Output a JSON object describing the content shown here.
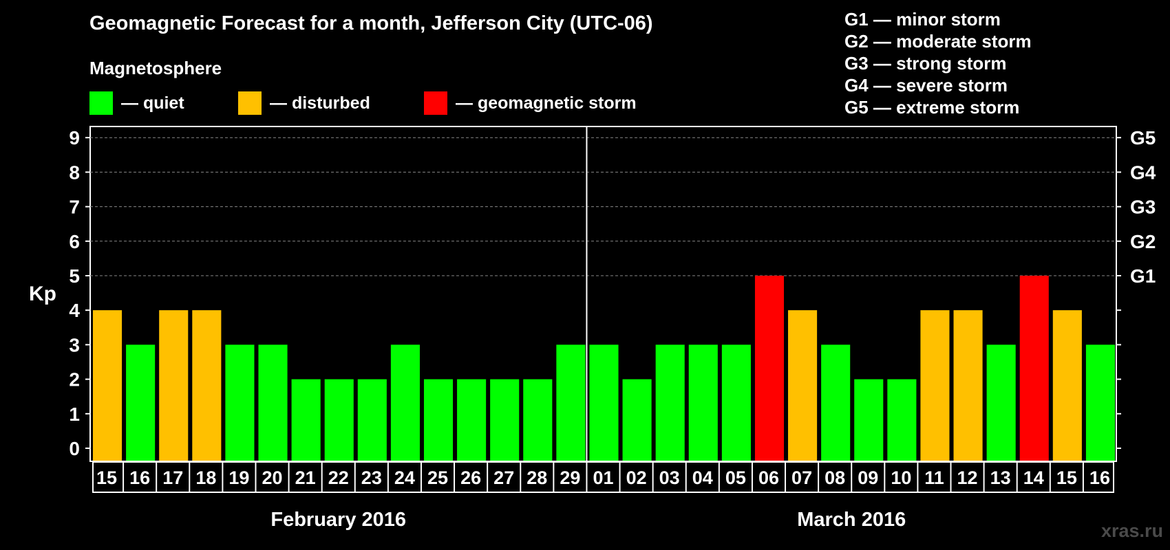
{
  "title": "Geomagnetic Forecast for a month, Jefferson City (UTC-06)",
  "subtitle": "Magnetosphere",
  "legend": [
    {
      "label": "— quiet",
      "color": "#00ff00"
    },
    {
      "label": "— disturbed",
      "color": "#ffc000"
    },
    {
      "label": "— geomagnetic storm",
      "color": "#ff0000"
    }
  ],
  "g_legend": [
    "G1 — minor storm",
    "G2 — moderate storm",
    "G3 — strong storm",
    "G4 — severe storm",
    "G5 — extreme storm"
  ],
  "watermark": "xras.ru",
  "chart_data": {
    "type": "bar",
    "title": "Geomagnetic Forecast for a month, Jefferson City (UTC-06)",
    "ylabel": "Kp",
    "ylim": [
      0,
      9
    ],
    "yticks": [
      "0",
      "1",
      "2",
      "3",
      "4",
      "5",
      "6",
      "7",
      "8",
      "9"
    ],
    "right_ticks": [
      {
        "value": 5,
        "label": "G1"
      },
      {
        "value": 6,
        "label": "G2"
      },
      {
        "value": 7,
        "label": "G3"
      },
      {
        "value": 8,
        "label": "G4"
      },
      {
        "value": 9,
        "label": "G5"
      }
    ],
    "categories": [
      "15",
      "16",
      "17",
      "18",
      "19",
      "20",
      "21",
      "22",
      "23",
      "24",
      "25",
      "26",
      "27",
      "28",
      "29",
      "01",
      "02",
      "03",
      "04",
      "05",
      "06",
      "07",
      "08",
      "09",
      "10",
      "11",
      "12",
      "13",
      "14",
      "15",
      "16"
    ],
    "values": [
      4,
      3,
      4,
      4,
      3,
      3,
      2,
      2,
      2,
      3,
      2,
      2,
      2,
      2,
      3,
      3,
      2,
      3,
      3,
      3,
      5,
      4,
      3,
      2,
      2,
      4,
      4,
      3,
      5,
      4,
      3
    ],
    "status": [
      "disturbed",
      "quiet",
      "disturbed",
      "disturbed",
      "quiet",
      "quiet",
      "quiet",
      "quiet",
      "quiet",
      "quiet",
      "quiet",
      "quiet",
      "quiet",
      "quiet",
      "quiet",
      "quiet",
      "quiet",
      "quiet",
      "quiet",
      "quiet",
      "storm",
      "disturbed",
      "quiet",
      "quiet",
      "quiet",
      "disturbed",
      "disturbed",
      "quiet",
      "storm",
      "disturbed",
      "quiet"
    ],
    "status_colors": {
      "quiet": "#00ff00",
      "disturbed": "#ffc000",
      "storm": "#ff0000"
    },
    "months": [
      {
        "label": "February 2016",
        "count": 15
      },
      {
        "label": "March 2016",
        "count": 16
      }
    ]
  }
}
